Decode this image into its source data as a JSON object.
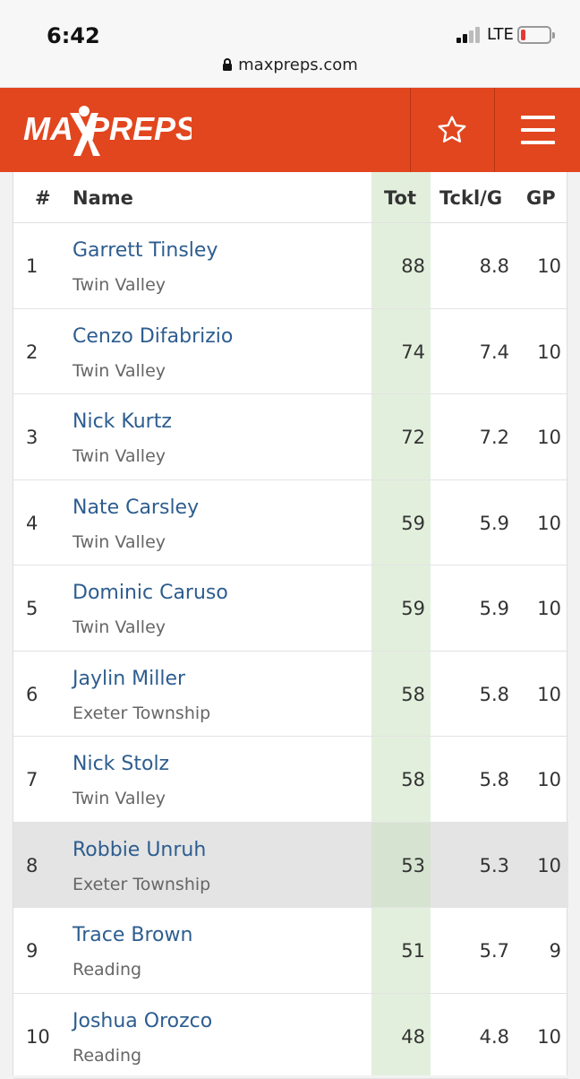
{
  "status": {
    "time": "6:42",
    "network": "LTE",
    "battery_level": 0.15,
    "url": "maxpreps.com"
  },
  "header": {
    "logo_text": "MAXPREPS",
    "favorite_icon": "star-icon",
    "menu_icon": "hamburger-menu-icon",
    "brand_color": "#e2461f"
  },
  "table": {
    "columns": {
      "rank": "#",
      "name": "Name",
      "tot": "Tot",
      "tpg": "Tckl/G",
      "gp": "GP"
    },
    "rows": [
      {
        "rank": "1",
        "name": "Garrett Tinsley",
        "school": "Twin Valley",
        "tot": "88",
        "tpg": "8.8",
        "gp": "10"
      },
      {
        "rank": "2",
        "name": "Cenzo Difabrizio",
        "school": "Twin Valley",
        "tot": "74",
        "tpg": "7.4",
        "gp": "10"
      },
      {
        "rank": "3",
        "name": "Nick Kurtz",
        "school": "Twin Valley",
        "tot": "72",
        "tpg": "7.2",
        "gp": "10"
      },
      {
        "rank": "4",
        "name": "Nate Carsley",
        "school": "Twin Valley",
        "tot": "59",
        "tpg": "5.9",
        "gp": "10"
      },
      {
        "rank": "5",
        "name": "Dominic Caruso",
        "school": "Twin Valley",
        "tot": "59",
        "tpg": "5.9",
        "gp": "10"
      },
      {
        "rank": "6",
        "name": "Jaylin Miller",
        "school": "Exeter Township",
        "tot": "58",
        "tpg": "5.8",
        "gp": "10"
      },
      {
        "rank": "7",
        "name": "Nick Stolz",
        "school": "Twin Valley",
        "tot": "58",
        "tpg": "5.8",
        "gp": "10"
      },
      {
        "rank": "8",
        "name": "Robbie Unruh",
        "school": "Exeter Township",
        "tot": "53",
        "tpg": "5.3",
        "gp": "10"
      },
      {
        "rank": "9",
        "name": "Trace Brown",
        "school": "Reading",
        "tot": "51",
        "tpg": "5.7",
        "gp": "9"
      },
      {
        "rank": "10",
        "name": "Joshua Orozco",
        "school": "Reading",
        "tot": "48",
        "tpg": "4.8",
        "gp": "10"
      }
    ]
  }
}
